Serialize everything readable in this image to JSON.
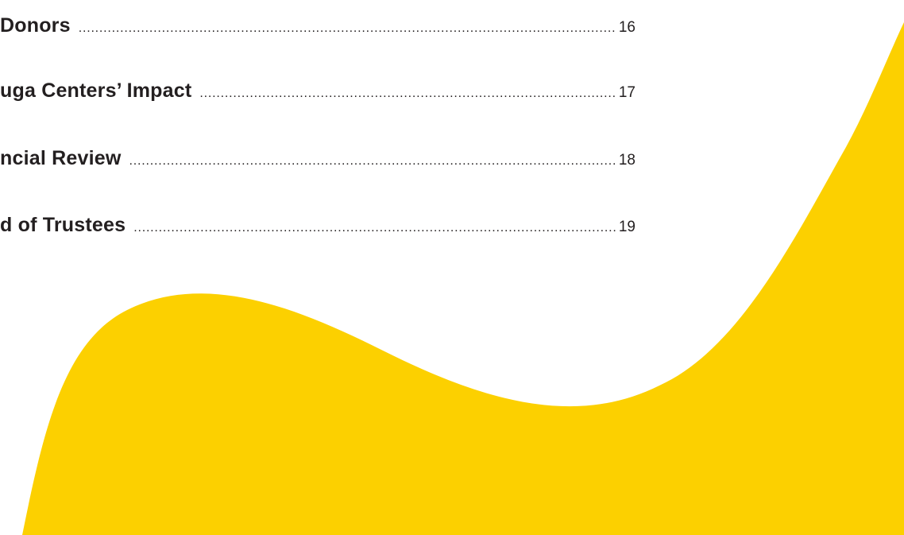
{
  "colors": {
    "background": "#ffffff",
    "accent_wave": "#fcd000",
    "text": "#231f20"
  },
  "toc": {
    "entries": [
      {
        "title": "Donors",
        "page": "16"
      },
      {
        "title": "uga Centers’ Impact",
        "page": "17"
      },
      {
        "title": "ncial Review",
        "page": "18"
      },
      {
        "title": "d of Trustees",
        "page": "19"
      }
    ]
  },
  "leader_dots": "........................................................................................................................................................................................................................................................"
}
